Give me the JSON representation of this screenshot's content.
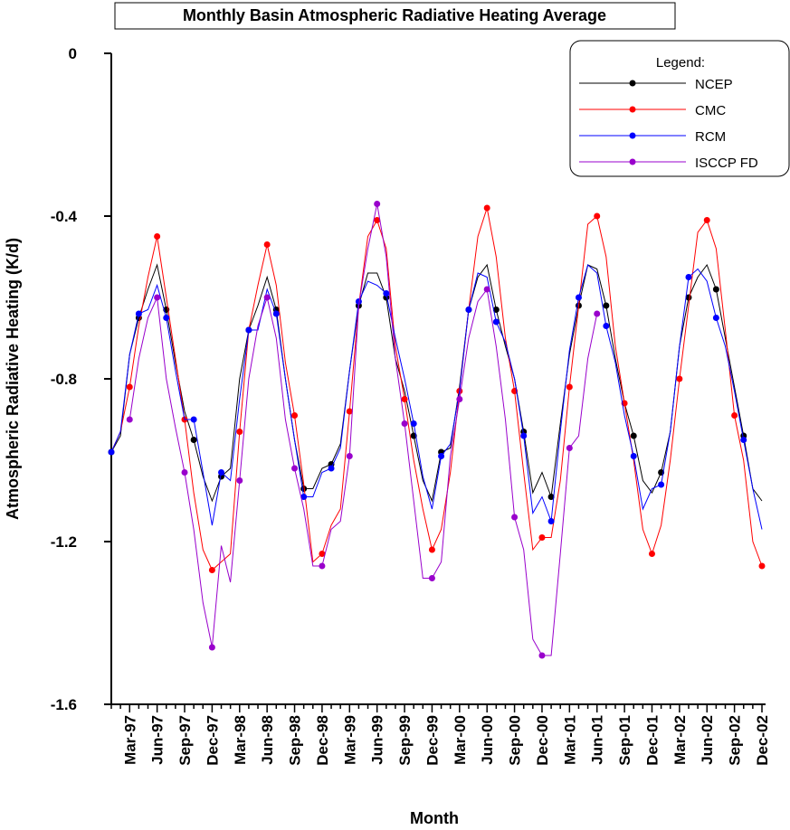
{
  "chart_data": {
    "type": "line",
    "title": "Monthly Basin Atmospheric Radiative Heating Average",
    "x_label": "Month",
    "y_label": "Atmospheric Radiative Heating (K/d)",
    "legend_title": "Legend:",
    "legend": "upper right",
    "categories": [
      null,
      null,
      "Mar-97",
      null,
      null,
      "Jun-97",
      null,
      null,
      "Sep-97",
      null,
      null,
      "Dec-97",
      null,
      null,
      "Mar-98",
      null,
      null,
      "Jun-98",
      null,
      null,
      "Sep-98",
      null,
      null,
      "Dec-98",
      null,
      null,
      "Mar-99",
      null,
      null,
      "Jun-99",
      null,
      null,
      "Sep-99",
      null,
      null,
      "Dec-99",
      null,
      null,
      "Mar-00",
      null,
      null,
      "Jun-00",
      null,
      null,
      "Sep-00",
      null,
      null,
      "Dec-00",
      null,
      null,
      "Mar-01",
      null,
      null,
      "Jun-01",
      null,
      null,
      "Sep-01",
      null,
      null,
      "Dec-01",
      null,
      null,
      "Mar-02",
      null,
      null,
      "Jun-02",
      null,
      null,
      "Sep-02",
      null,
      null,
      "Dec-02"
    ],
    "ylim": [
      -1.6,
      0
    ],
    "yticks": [
      0,
      -0.4,
      -0.8,
      -1.2,
      -1.6
    ],
    "series": [
      {
        "name": "NCEP",
        "color": "#000000",
        "values": [
          -0.98,
          -0.94,
          -0.74,
          -0.65,
          -0.58,
          -0.52,
          -0.63,
          -0.76,
          -0.88,
          -0.95,
          -1.04,
          -1.1,
          -1.04,
          -1.02,
          -0.8,
          -0.68,
          -0.62,
          -0.55,
          -0.63,
          -0.8,
          -0.95,
          -1.07,
          -1.07,
          -1.02,
          -1.01,
          -0.96,
          -0.78,
          -0.62,
          -0.54,
          -0.54,
          -0.6,
          -0.75,
          -0.83,
          -0.94,
          -1.05,
          -1.1,
          -0.98,
          -0.97,
          -0.82,
          -0.63,
          -0.55,
          -0.52,
          -0.63,
          -0.72,
          -0.8,
          -0.93,
          -1.08,
          -1.03,
          -1.09,
          -0.91,
          -0.74,
          -0.62,
          -0.52,
          -0.53,
          -0.62,
          -0.75,
          -0.86,
          -0.94,
          -1.05,
          -1.08,
          -1.03,
          -0.93,
          -0.72,
          -0.6,
          -0.55,
          -0.52,
          -0.58,
          -0.7,
          -0.82,
          -0.94,
          -1.07,
          -1.1
        ]
      },
      {
        "name": "CMC",
        "color": "#ff0000",
        "values": [
          -0.98,
          -0.93,
          -0.82,
          -0.67,
          -0.55,
          -0.45,
          -0.6,
          -0.75,
          -0.9,
          -1.08,
          -1.22,
          -1.27,
          -1.25,
          -1.23,
          -0.93,
          -0.68,
          -0.57,
          -0.47,
          -0.57,
          -0.76,
          -0.89,
          -1.06,
          -1.25,
          -1.23,
          -1.16,
          -1.12,
          -0.88,
          -0.62,
          -0.45,
          -0.41,
          -0.48,
          -0.72,
          -0.85,
          -1.0,
          -1.12,
          -1.22,
          -1.17,
          -1.03,
          -0.83,
          -0.63,
          -0.45,
          -0.38,
          -0.5,
          -0.7,
          -0.83,
          -1.03,
          -1.22,
          -1.19,
          -1.19,
          -1.05,
          -0.82,
          -0.62,
          -0.42,
          -0.4,
          -0.5,
          -0.72,
          -0.86,
          -1.0,
          -1.17,
          -1.23,
          -1.16,
          -1.0,
          -0.8,
          -0.62,
          -0.44,
          -0.41,
          -0.48,
          -0.68,
          -0.89,
          -1.0,
          -1.2,
          -1.26
        ]
      },
      {
        "name": "RCM",
        "color": "#0000ff",
        "values": [
          -0.98,
          -0.93,
          -0.74,
          -0.64,
          -0.63,
          -0.57,
          -0.65,
          -0.78,
          -0.9,
          -0.9,
          -1.03,
          -1.16,
          -1.03,
          -1.05,
          -0.85,
          -0.68,
          -0.68,
          -0.58,
          -0.64,
          -0.8,
          -0.95,
          -1.09,
          -1.09,
          -1.03,
          -1.02,
          -0.97,
          -0.78,
          -0.61,
          -0.56,
          -0.57,
          -0.59,
          -0.7,
          -0.8,
          -0.91,
          -1.04,
          -1.12,
          -0.99,
          -0.96,
          -0.83,
          -0.63,
          -0.54,
          -0.55,
          -0.66,
          -0.71,
          -0.8,
          -0.94,
          -1.13,
          -1.09,
          -1.15,
          -0.93,
          -0.73,
          -0.6,
          -0.52,
          -0.54,
          -0.67,
          -0.76,
          -0.89,
          -0.99,
          -1.12,
          -1.07,
          -1.06,
          -0.93,
          -0.72,
          -0.55,
          -0.53,
          -0.56,
          -0.65,
          -0.72,
          -0.83,
          -0.95,
          -1.07,
          -1.17
        ]
      },
      {
        "name": "ISCCP FD",
        "color": "#9900cc",
        "values": [
          null,
          null,
          -0.9,
          -0.75,
          -0.65,
          -0.6,
          -0.8,
          -0.92,
          -1.03,
          -1.17,
          -1.35,
          -1.46,
          -1.21,
          -1.3,
          -1.05,
          -0.8,
          -0.67,
          -0.6,
          -0.7,
          -0.9,
          -1.02,
          -1.12,
          -1.26,
          -1.26,
          -1.17,
          -1.15,
          -0.99,
          -0.62,
          -0.48,
          -0.37,
          -0.5,
          -0.75,
          -0.91,
          -1.1,
          -1.29,
          -1.29,
          -1.25,
          -0.99,
          -0.85,
          -0.7,
          -0.61,
          -0.58,
          -0.72,
          -0.9,
          -1.14,
          -1.22,
          -1.44,
          -1.48,
          -1.48,
          -1.23,
          -0.97,
          -0.94,
          -0.75,
          -0.64,
          null,
          null,
          null,
          null,
          null,
          null,
          null,
          null,
          null,
          null,
          null,
          null,
          null,
          null,
          null,
          null,
          null,
          null
        ]
      }
    ]
  }
}
